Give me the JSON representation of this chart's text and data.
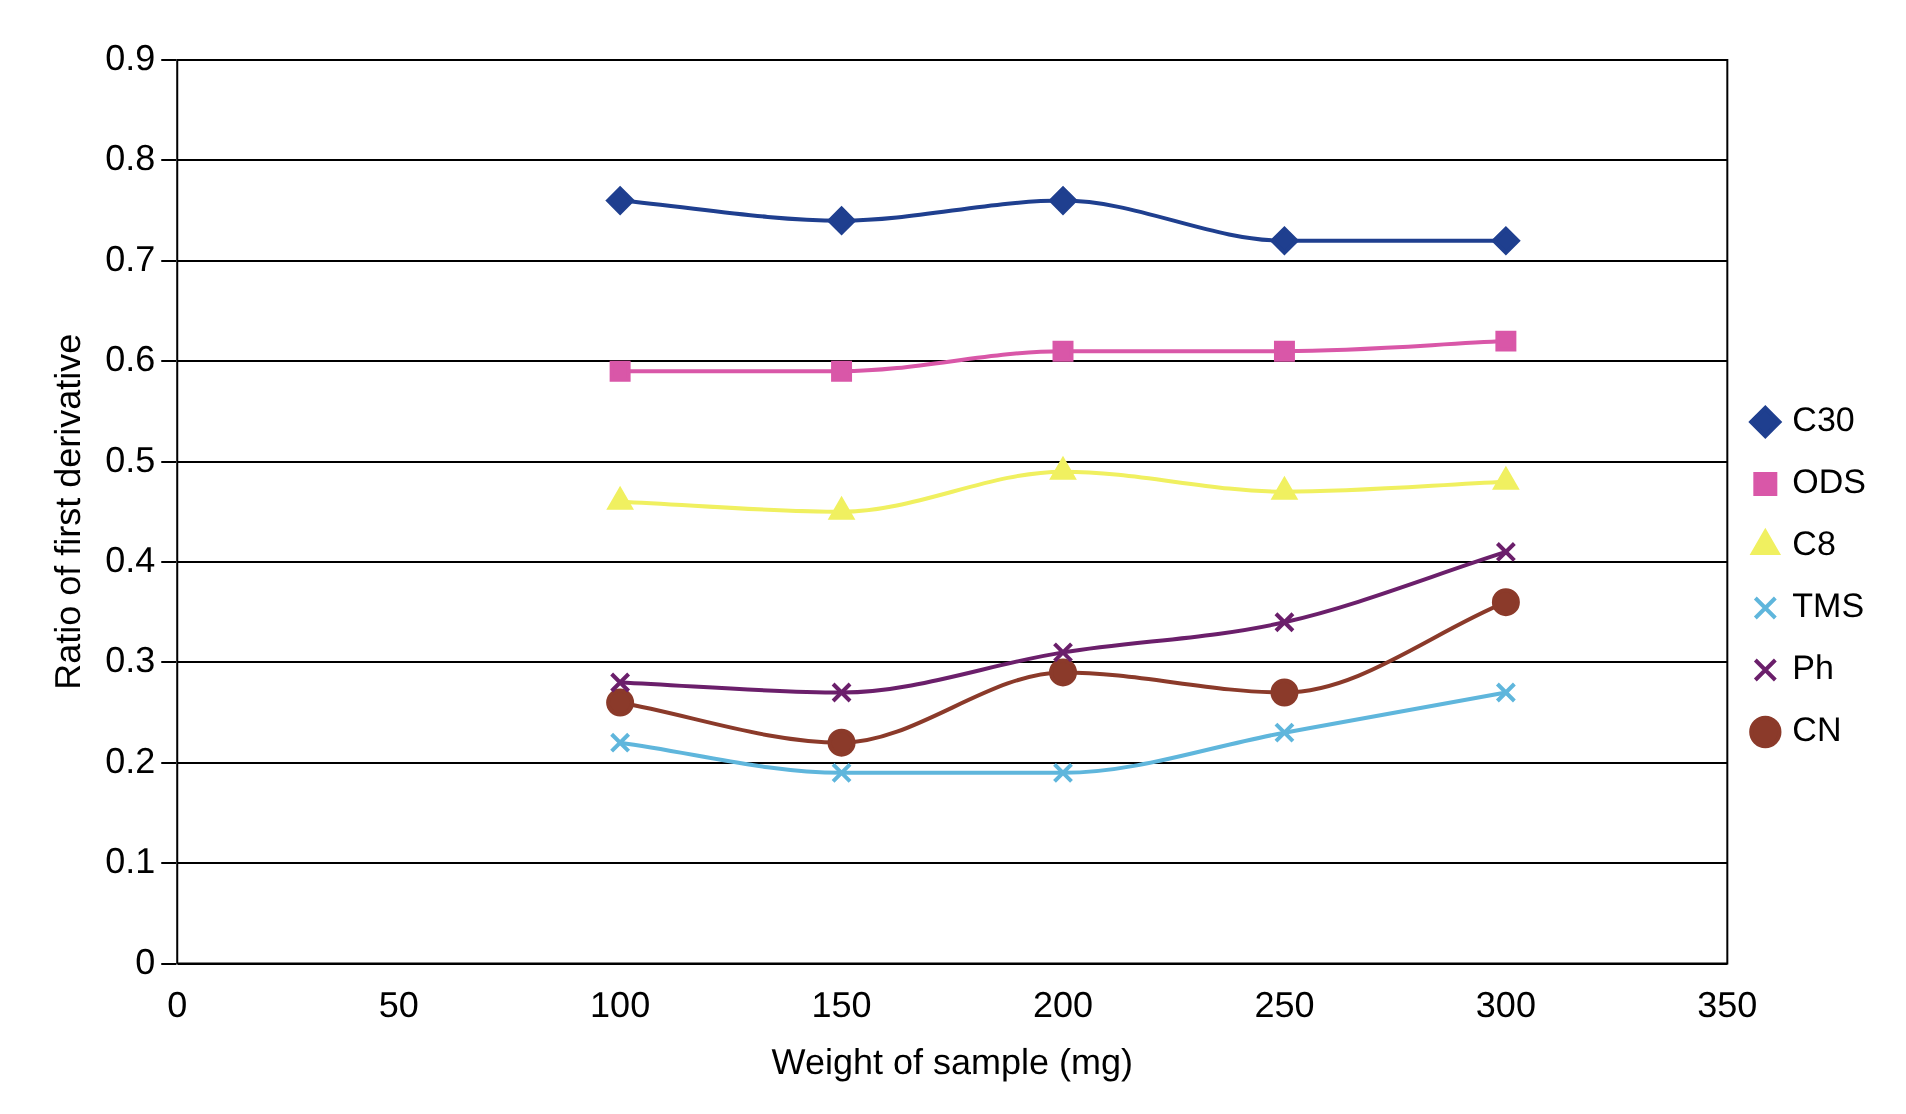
{
  "chart_data": {
    "type": "line",
    "xlabel": "Weight of sample (mg)",
    "ylabel": "Ratio of first derivative",
    "x": [
      100,
      150,
      200,
      250,
      300
    ],
    "xlim": [
      0,
      350
    ],
    "xticks": [
      0,
      50,
      100,
      150,
      200,
      250,
      300,
      350
    ],
    "ylim": [
      0,
      0.9
    ],
    "yticks": [
      0,
      0.1,
      0.2,
      0.3,
      0.4,
      0.5,
      0.6,
      0.7,
      0.8,
      0.9
    ],
    "grid": "y",
    "legend": "right",
    "series": [
      {
        "name": "C30",
        "color": "#1f3f8f",
        "marker": "diamond",
        "values": [
          0.76,
          0.74,
          0.76,
          0.72,
          0.72
        ]
      },
      {
        "name": "ODS",
        "color": "#d957a8",
        "marker": "square",
        "values": [
          0.59,
          0.59,
          0.61,
          0.61,
          0.62
        ]
      },
      {
        "name": "C8",
        "color": "#f0f060",
        "marker": "triangle",
        "values": [
          0.46,
          0.45,
          0.49,
          0.47,
          0.48
        ]
      },
      {
        "name": "TMS",
        "color": "#5fb6dc",
        "marker": "cross",
        "values": [
          0.22,
          0.19,
          0.19,
          0.23,
          0.27
        ]
      },
      {
        "name": "Ph",
        "color": "#6b1f6b",
        "marker": "cross",
        "values": [
          0.28,
          0.27,
          0.31,
          0.34,
          0.41
        ]
      },
      {
        "name": "CN",
        "color": "#8b3a2a",
        "marker": "circle",
        "values": [
          0.26,
          0.22,
          0.29,
          0.27,
          0.36
        ]
      }
    ]
  }
}
